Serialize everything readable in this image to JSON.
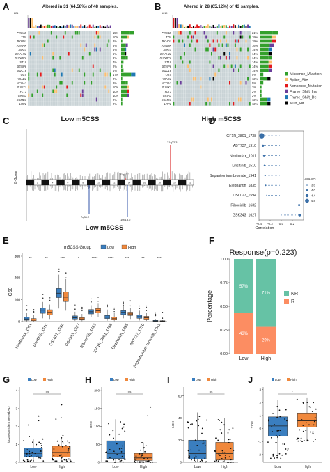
{
  "panel_labels": [
    "A",
    "B",
    "C",
    "D",
    "E",
    "F",
    "G",
    "H",
    "I",
    "J"
  ],
  "colors": {
    "Missense_Mutation": "#33a02c",
    "Splice_Site": "#fdbf6f",
    "Nonsense_Mutation": "#e31a1c",
    "Frame_Shift_Ins": "#6a3d9a",
    "Frame_Shift_Del": "#1f78b4",
    "Multi_Hit": "#000000",
    "oncoprint_bg": "#c9d3d6",
    "low": "#3a7ebf",
    "high": "#f0883c",
    "nr": "#66c2a5",
    "r": "#fc8d62"
  },
  "chart_data": [
    {
      "panel": "A",
      "type": "heatmap",
      "title": "Altered in 31 (64.58%) of 48 samples.",
      "xlabel": "Low m5CSS",
      "tmb_axis_max": "221",
      "genes": [
        "FRG1B",
        "TTN",
        "PKHD1",
        "AHNAK",
        "SMG7",
        "DNAH11",
        "RANBP3",
        "ST18",
        "SENP6",
        "MUC16",
        "OST",
        "ADAD1",
        "NCOA2",
        "RUNX1",
        "FLT3",
        "GRIA3",
        "CSMD3",
        "LRP2"
      ],
      "percents": [
        "15%",
        "10%",
        "2%",
        "8%",
        "6%",
        "6%",
        "8%",
        "4%",
        "2%",
        "4%",
        "17%",
        "2%",
        "8%",
        "10%",
        "10%",
        "10%",
        "2%",
        "2%"
      ]
    },
    {
      "panel": "B",
      "type": "heatmap",
      "title": "Altered in 28 (65.12%) of 43 samples.",
      "xlabel": "High m5CSS",
      "tmb_axis_max": "1619",
      "genes": [
        "FRG1B",
        "TTN",
        "PKHD1",
        "AHNAK",
        "SMG7",
        "DNAH11",
        "RANBP3",
        "ST18",
        "SENP6",
        "MUC16",
        "OST",
        "ADAD1",
        "NCOA2",
        "RUNX1",
        "FLT3",
        "GRIA3",
        "CSMD3",
        "LRP2"
      ],
      "percents": [
        "21%",
        "19%",
        "19%",
        "16%",
        "14%",
        "14%",
        "14%",
        "14%",
        "14%",
        "14%",
        "5%",
        "12%",
        "5%",
        "2%",
        "2%",
        "2%",
        "12%",
        "12%"
      ],
      "legend": [
        "Missense_Mutation",
        "Splice_Site",
        "Nonsense_Mutation",
        "Frame_Shift_Ins",
        "Frame_Shift_Del",
        "Multi_Hit"
      ]
    },
    {
      "panel": "C",
      "type": "bar",
      "title": "",
      "ylabel": "G-Score",
      "xlabel": "Low m5CSS",
      "annotations": [
        "11q23.3",
        "21q22.3",
        "7q36.2",
        "10q13.2"
      ]
    },
    {
      "panel": "D",
      "type": "scatter",
      "xlabel": "Correlation",
      "xlim": [
        -0.4,
        0.4
      ],
      "x_ticks": [
        "-0.4",
        "-0.2",
        "0.0",
        "0.2"
      ],
      "drugs": [
        "IGF1R_3801_1738",
        "ABT737_1910",
        "Navitoclax_1011",
        "Linsitinib_1510",
        "Sepantronium bromide_1941",
        "Elephantin_1835",
        "OSI.027_1594",
        "Ribociclib_1632",
        "GSK343_1627"
      ],
      "correlation": [
        -0.35,
        -0.33,
        -0.31,
        -0.3,
        -0.29,
        -0.28,
        -0.26,
        0.32,
        0.33
      ],
      "log10p": [
        5.8,
        4.2,
        4.0,
        3.9,
        3.8,
        3.7,
        3.5,
        4.1,
        4.4
      ],
      "legend_title": "-log10(P)",
      "legend_values": [
        "3.6",
        "4.0",
        "4.4",
        "4.8"
      ]
    },
    {
      "panel": "E",
      "type": "bar",
      "ylabel": "IC50",
      "legend_title": "m5CSS Group",
      "legend": [
        "Low",
        "High"
      ],
      "y_ticks": [
        "0",
        "100",
        "200",
        "300"
      ],
      "ylim": [
        0,
        300
      ],
      "categories": [
        "Navitoclax_1011",
        "Linsitinib_1510",
        "OSI.027_1594",
        "GSK343_1627",
        "Ribociclib_1632",
        "IGF1R_3801_1738",
        "Elephantin_1835",
        "ABT737_1910",
        "Sepantronium bromide_1941"
      ],
      "significance": [
        "**",
        "**",
        "***",
        "*",
        "****",
        "****",
        "***",
        "**",
        "***"
      ],
      "series": [
        {
          "name": "Low",
          "median": [
            12,
            52,
            130,
            18,
            45,
            20,
            42,
            22,
            3
          ],
          "q1": [
            6,
            38,
            110,
            12,
            35,
            14,
            32,
            15,
            1
          ],
          "q3": [
            20,
            62,
            152,
            26,
            55,
            28,
            50,
            30,
            6
          ],
          "wmin": [
            1,
            15,
            60,
            3,
            20,
            4,
            15,
            5,
            0
          ],
          "wmax": [
            40,
            90,
            215,
            45,
            75,
            55,
            70,
            50,
            12
          ]
        },
        {
          "name": "High",
          "median": [
            8,
            42,
            112,
            12,
            50,
            13,
            35,
            18,
            2
          ],
          "q1": [
            4,
            30,
            92,
            7,
            40,
            8,
            28,
            11,
            1
          ],
          "q3": [
            14,
            54,
            135,
            18,
            60,
            20,
            43,
            24,
            4
          ],
          "wmin": [
            1,
            12,
            50,
            2,
            22,
            2,
            12,
            3,
            0
          ],
          "wmax": [
            30,
            78,
            195,
            35,
            85,
            40,
            62,
            40,
            9
          ]
        }
      ]
    },
    {
      "panel": "F",
      "type": "bar",
      "title": "Response(p=0.223)",
      "ylabel": "Percentage",
      "categories": [
        "Low",
        "High"
      ],
      "y_ticks": [
        "0.00",
        "0.25",
        "0.50",
        "0.75",
        "1.00"
      ],
      "series": [
        {
          "name": "NR",
          "values": [
            0.57,
            0.71
          ],
          "labels": [
            "57%",
            "71%"
          ]
        },
        {
          "name": "R",
          "values": [
            0.43,
            0.29
          ],
          "labels": [
            "43%",
            "29%"
          ]
        }
      ],
      "legend": [
        "NR",
        "R"
      ]
    },
    {
      "panel": "G",
      "type": "scatter",
      "ylabel": "log2(Non silent per Mb+1)",
      "categories": [
        "Low",
        "High"
      ],
      "significance": "ns",
      "legend": [
        "Low",
        "High"
      ],
      "y_ticks": [
        "0",
        "1",
        "2",
        "3",
        "4"
      ],
      "ylim": [
        0,
        4.2
      ],
      "box": [
        {
          "q1": 0.3,
          "median": 0.5,
          "q3": 0.8,
          "wmin": 0.05,
          "wmax": 1.3
        },
        {
          "q1": 0.3,
          "median": 0.55,
          "q3": 0.9,
          "wmin": 0.05,
          "wmax": 1.4
        }
      ]
    },
    {
      "panel": "H",
      "type": "scatter",
      "ylabel": "HRD",
      "categories": [
        "Low",
        "High"
      ],
      "significance": "ns",
      "legend": [
        "Low",
        "High"
      ],
      "y_ticks": [
        "0",
        "50",
        "100",
        "150",
        "200"
      ],
      "ylim": [
        0,
        210
      ],
      "box": [
        {
          "q1": 10,
          "median": 25,
          "q3": 60,
          "wmin": 0,
          "wmax": 120
        },
        {
          "q1": 5,
          "median": 12,
          "q3": 25,
          "wmin": 0,
          "wmax": 55
        }
      ]
    },
    {
      "panel": "I",
      "type": "scatter",
      "ylabel": "LOH",
      "categories": [
        "Low",
        "High"
      ],
      "significance": "ns",
      "legend": [
        "Low",
        "High"
      ],
      "y_ticks": [
        "0",
        "20",
        "40",
        "60"
      ],
      "ylim": [
        0,
        68
      ],
      "box": [
        {
          "q1": 3,
          "median": 8,
          "q3": 20,
          "wmin": 0,
          "wmax": 45
        },
        {
          "q1": 2,
          "median": 8,
          "q3": 18,
          "wmin": 0,
          "wmax": 40
        }
      ]
    },
    {
      "panel": "J",
      "type": "scatter",
      "ylabel": "TIDE",
      "categories": [
        "Low",
        "High"
      ],
      "significance": "*",
      "legend": [
        "Low",
        "High"
      ],
      "y_ticks": [
        "-2",
        "-1",
        "0",
        "1",
        "2",
        "3"
      ],
      "ylim": [
        -2.6,
        3.2
      ],
      "box": [
        {
          "q1": -0.6,
          "median": 0.2,
          "q3": 0.9,
          "wmin": -2.3,
          "wmax": 2.2
        },
        {
          "q1": 0.1,
          "median": 0.6,
          "q3": 1.2,
          "wmin": -1.0,
          "wmax": 2.4
        }
      ]
    }
  ]
}
